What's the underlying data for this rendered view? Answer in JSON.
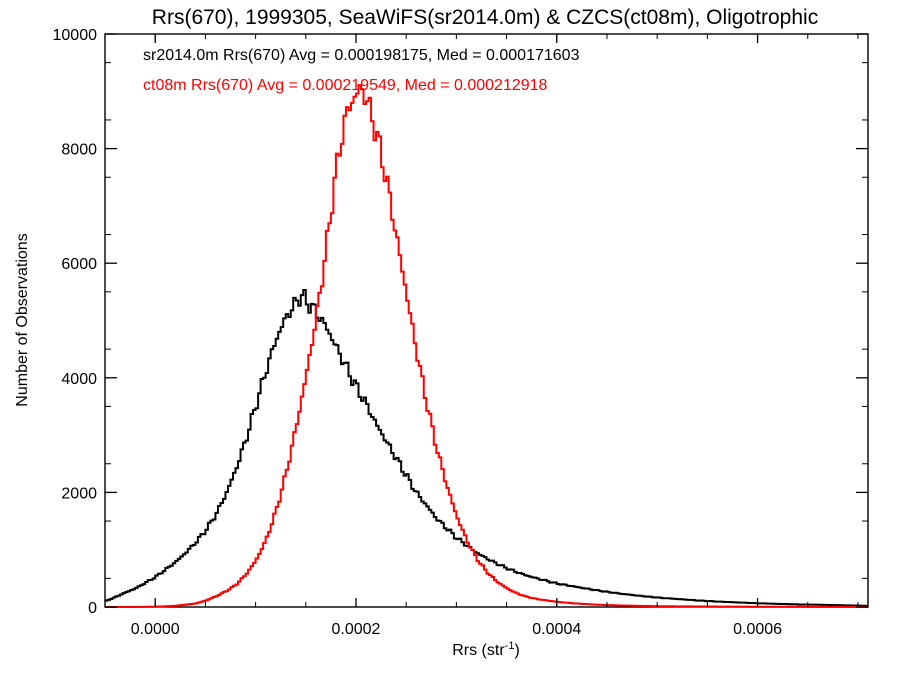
{
  "chart_data": {
    "type": "histogram",
    "title": "Rrs(670), 1999305, SeaWiFS(sr2014.0m) & CZCS(ct08m), Oligotrophic",
    "xlabel": "Rrs (str",
    "xlabel_sup": "-1",
    "xlabel_close": ")",
    "ylabel": "Number of Observations",
    "xlim": [
      -5e-05,
      0.00071
    ],
    "ylim": [
      0,
      10000
    ],
    "xticks": [
      0.0,
      0.0002,
      0.0004,
      0.0006
    ],
    "xtick_labels": [
      "0.0000",
      "0.0002",
      "0.0004",
      "0.0006"
    ],
    "yticks": [
      0,
      2000,
      4000,
      6000,
      8000,
      10000
    ],
    "ytick_labels": [
      "0",
      "2000",
      "4000",
      "6000",
      "8000",
      "10000"
    ],
    "grid": false,
    "annotations": [
      {
        "text": "sr2014.0m Rrs(670) Avg = 0.000198175, Med = 0.000171603",
        "color": "#000000"
      },
      {
        "text": "ct08m Rrs(670) Avg = 0.000219549, Med = 0.000212918",
        "color": "#ff0000"
      }
    ],
    "series": [
      {
        "color": "#000000",
        "x": [
          -5e-05,
          -4e-05,
          -3e-05,
          -2e-05,
          -1e-05,
          0.0,
          1e-05,
          2e-05,
          3e-05,
          4e-05,
          5e-05,
          6e-05,
          7e-05,
          8e-05,
          9e-05,
          0.0001,
          0.00011,
          0.00012,
          0.00013,
          0.00014,
          0.000145,
          0.00015,
          0.00016,
          0.00017,
          0.00018,
          0.00019,
          0.0002,
          0.00021,
          0.00022,
          0.00023,
          0.00024,
          0.00025,
          0.00026,
          0.00027,
          0.00028,
          0.00029,
          0.0003,
          0.00031,
          0.00032,
          0.00033,
          0.00034,
          0.00035,
          0.00036,
          0.00037,
          0.00038,
          0.0004,
          0.00042,
          0.00044,
          0.00046,
          0.00048,
          0.0005,
          0.00052,
          0.00054,
          0.00056,
          0.00058,
          0.0006,
          0.00062,
          0.00064,
          0.00066,
          0.00068,
          0.0007,
          0.00071
        ],
        "y": [
          100,
          170,
          250,
          320,
          420,
          520,
          650,
          780,
          940,
          1120,
          1330,
          1600,
          1950,
          2380,
          2900,
          3500,
          4100,
          4650,
          5050,
          5300,
          5450,
          5350,
          5150,
          4900,
          4550,
          4200,
          3850,
          3550,
          3200,
          2900,
          2600,
          2300,
          2000,
          1780,
          1550,
          1380,
          1210,
          1080,
          950,
          850,
          760,
          680,
          610,
          550,
          500,
          410,
          350,
          290,
          240,
          200,
          165,
          140,
          115,
          95,
          80,
          65,
          55,
          45,
          40,
          32,
          25,
          20
        ]
      },
      {
        "color": "#ff0000",
        "x": [
          -5e-05,
          -2e-05,
          0.0,
          2e-05,
          4e-05,
          5e-05,
          6e-05,
          7e-05,
          8e-05,
          9e-05,
          0.0001,
          0.00011,
          0.00012,
          0.00013,
          0.00014,
          0.00015,
          0.00016,
          0.00017,
          0.00018,
          0.00019,
          0.0002,
          0.000205,
          0.00021,
          0.00022,
          0.00023,
          0.00024,
          0.00025,
          0.00026,
          0.00027,
          0.00028,
          0.00029,
          0.0003,
          0.00031,
          0.00032,
          0.00033,
          0.00034,
          0.00035,
          0.00036,
          0.00037,
          0.00038,
          0.0004,
          0.00042,
          0.00044,
          0.00046,
          0.00048,
          0.0005,
          0.00055,
          0.0006,
          0.00065,
          0.0007,
          0.00071
        ],
        "y": [
          0,
          0,
          5,
          20,
          60,
          110,
          180,
          270,
          380,
          560,
          800,
          1150,
          1650,
          2300,
          3100,
          4000,
          5000,
          6200,
          7600,
          8600,
          8950,
          9050,
          8900,
          8300,
          7500,
          6500,
          5500,
          4500,
          3600,
          2800,
          2150,
          1600,
          1180,
          850,
          620,
          450,
          330,
          240,
          180,
          140,
          90,
          60,
          40,
          28,
          20,
          14,
          8,
          5,
          3,
          2,
          1
        ]
      }
    ]
  }
}
